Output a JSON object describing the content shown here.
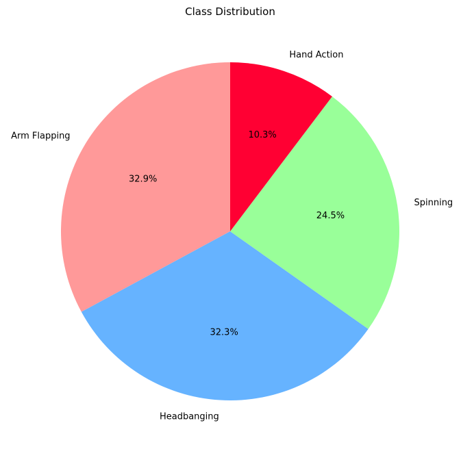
{
  "chart_data": {
    "type": "pie",
    "title": "Class Distribution",
    "start_angle_deg": 90,
    "direction": "counterclockwise",
    "slices": [
      {
        "label": "Arm Flapping",
        "value": 32.9,
        "pct_text": "32.9%",
        "color": "#ff9999"
      },
      {
        "label": "Headbanging",
        "value": 32.3,
        "pct_text": "32.3%",
        "color": "#66b3ff"
      },
      {
        "label": "Spinning",
        "value": 24.5,
        "pct_text": "24.5%",
        "color": "#99ff99"
      },
      {
        "label": "Hand Action",
        "value": 10.3,
        "pct_text": "10.3%",
        "color": "#ff0033"
      }
    ]
  }
}
